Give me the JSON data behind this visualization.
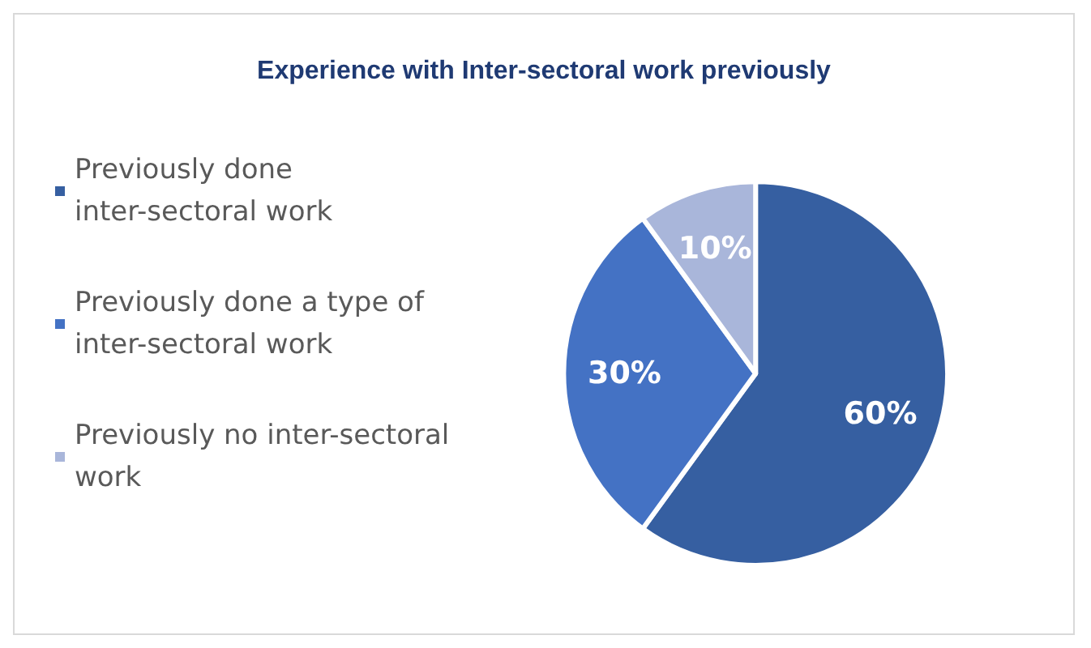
{
  "chart_data": {
    "type": "pie",
    "title": "Experience with Inter-sectoral work previously",
    "categories": [
      "Previously done inter-sectoral work",
      "Previously done a type of inter-sectoral work",
      "Previously no inter-sectoral work"
    ],
    "values": [
      60,
      30,
      10
    ],
    "colors": [
      "#365fa1",
      "#4472c4",
      "#a9b6da"
    ],
    "value_labels": [
      "60%",
      "30%",
      "10%"
    ],
    "legend": "left"
  }
}
